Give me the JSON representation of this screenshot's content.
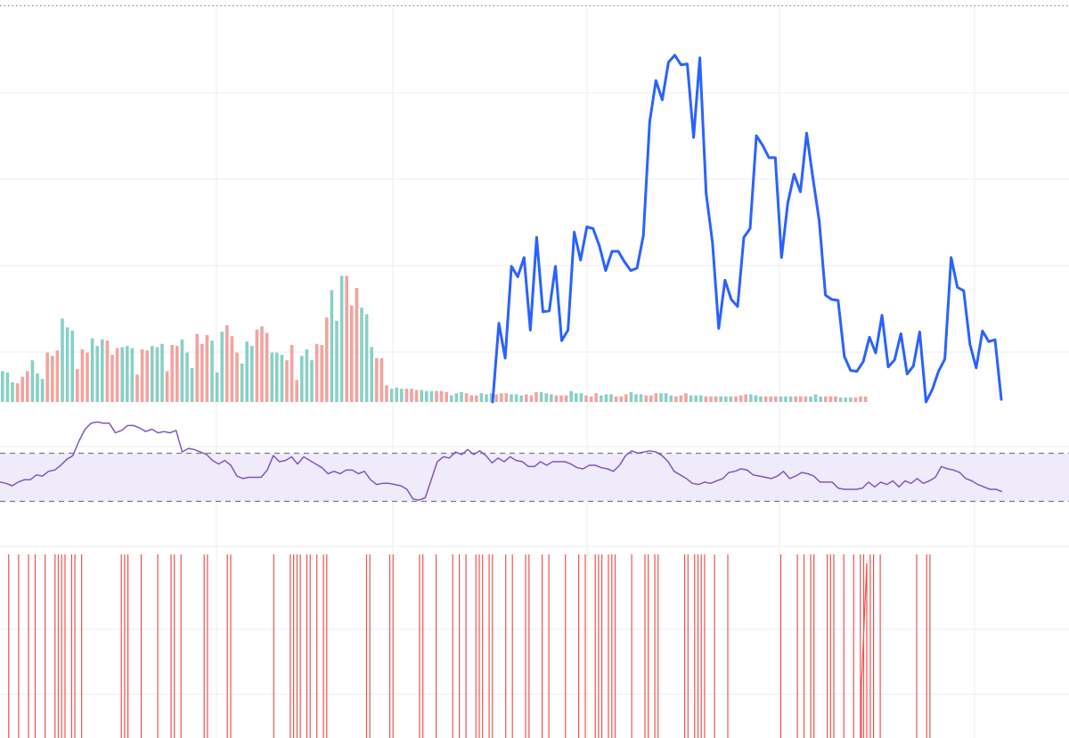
{
  "chart_data": [
    {
      "pane": "price",
      "type": "line",
      "title": "",
      "xlabel": "",
      "ylabel": "",
      "ylim": [
        0,
        400
      ],
      "grid": true,
      "x_start": 79,
      "series": [
        {
          "name": "",
          "color": "#2962ff",
          "values": [
            0,
            90,
            50,
            155,
            143,
            165,
            82,
            188,
            103,
            104,
            155,
            70,
            82,
            194,
            162,
            200,
            198,
            178,
            150,
            172,
            172,
            160,
            150,
            153,
            190,
            320,
            367,
            345,
            388,
            396,
            385,
            386,
            302,
            393,
            238,
            182,
            84,
            139,
            117,
            109,
            188,
            198,
            304,
            293,
            279,
            279,
            165,
            227,
            260,
            240,
            307,
            256,
            207,
            122,
            117,
            116,
            52,
            36,
            35,
            46,
            74,
            56,
            99,
            40,
            48,
            78,
            32,
            41,
            80,
            0,
            14,
            35,
            49,
            165,
            131,
            127,
            66,
            39,
            81,
            69,
            71,
            3
          ]
        },
        {
          "name": "",
          "type": "bar",
          "up_color": "#89d0c6",
          "down_color": "#f3a39f",
          "values": [
            28,
            27,
            18,
            17,
            23,
            28,
            38,
            26,
            21,
            45,
            42,
            47,
            76,
            68,
            65,
            30,
            48,
            45,
            58,
            51,
            57,
            56,
            43,
            49,
            50,
            51,
            49,
            25,
            48,
            47,
            51,
            50,
            53,
            28,
            52,
            51,
            57,
            45,
            31,
            62,
            53,
            61,
            56,
            27,
            64,
            70,
            60,
            45,
            35,
            55,
            51,
            66,
            69,
            63,
            45,
            45,
            43,
            38,
            52,
            20,
            42,
            48,
            38,
            53,
            52,
            77,
            102,
            74,
            115,
            115,
            88,
            104,
            86,
            80,
            50,
            40,
            40,
            15,
            12,
            13,
            12,
            12,
            12,
            11,
            11,
            10,
            10,
            10,
            10,
            9,
            6,
            8,
            9,
            8,
            6,
            6,
            8,
            7,
            8,
            7,
            8,
            8,
            7,
            7,
            6,
            7,
            6,
            9,
            9,
            8,
            7,
            6,
            6,
            6,
            10,
            8,
            8,
            6,
            5,
            8,
            6,
            7,
            7,
            5,
            5,
            7,
            9,
            7,
            7,
            6,
            6,
            8,
            8,
            8,
            6,
            5,
            6,
            8,
            6,
            6,
            6,
            5,
            5,
            5,
            5,
            5,
            5,
            5,
            6,
            7,
            7,
            6,
            5,
            5,
            5,
            5,
            5,
            5,
            5,
            5,
            5,
            5,
            5,
            7,
            5,
            5,
            5,
            5,
            4,
            4,
            4,
            4,
            5,
            5
          ]
        }
      ]
    },
    {
      "pane": "oscillator",
      "type": "line",
      "title": "",
      "xlabel": "",
      "ylabel": "",
      "ylim": [
        0,
        100
      ],
      "band": [
        30,
        70
      ],
      "band_color": "#efebfa",
      "grid": false,
      "series": [
        {
          "name": "",
          "color": "#7e57c2",
          "values": [
            46,
            45,
            43,
            46,
            48,
            48,
            52,
            51,
            55,
            56,
            60,
            65,
            68,
            80,
            90,
            95,
            96,
            95,
            95,
            87,
            89,
            93,
            93,
            91,
            88,
            90,
            87,
            88,
            87,
            89,
            71,
            74,
            73,
            71,
            69,
            64,
            61,
            64,
            60,
            51,
            49,
            50,
            50,
            50,
            56,
            68,
            63,
            64,
            67,
            61,
            67,
            64,
            61,
            58,
            53,
            55,
            53,
            56,
            56,
            53,
            55,
            48,
            44,
            45,
            45,
            44,
            43,
            40,
            32,
            31,
            33,
            48,
            63,
            67,
            66,
            71,
            69,
            73,
            69,
            72,
            68,
            62,
            66,
            63,
            67,
            64,
            63,
            59,
            59,
            63,
            60,
            63,
            63,
            63,
            61,
            58,
            57,
            60,
            60,
            58,
            57,
            55,
            60,
            68,
            72,
            70,
            71,
            72,
            71,
            68,
            63,
            55,
            52,
            49,
            45,
            44,
            46,
            45,
            47,
            49,
            54,
            55,
            57,
            56,
            52,
            51,
            50,
            49,
            51,
            55,
            49,
            51,
            54,
            53,
            51,
            46,
            46,
            46,
            41,
            40,
            40,
            40,
            41,
            46,
            42,
            46,
            44,
            47,
            42,
            47,
            45,
            49,
            45,
            47,
            50,
            59,
            57,
            56,
            54,
            49,
            47,
            44,
            42,
            40,
            40,
            38
          ]
        }
      ]
    },
    {
      "pane": "signals",
      "type": "line",
      "title": "",
      "xlabel": "",
      "ylabel": "",
      "grid": true,
      "series": [
        {
          "name": "",
          "color": "#ef5350",
          "signal_indices": [
            1,
            4,
            7,
            9,
            12,
            15,
            16,
            17,
            18,
            20,
            21,
            23,
            35,
            36,
            37,
            41,
            46,
            50,
            51,
            53,
            60,
            61,
            67,
            68,
            81,
            86,
            87,
            88,
            89,
            91,
            92,
            94,
            96,
            97,
            109,
            110,
            116,
            117,
            125,
            126,
            130,
            135,
            137,
            139,
            142,
            143,
            144,
            146,
            147,
            151,
            153,
            157,
            158,
            162,
            164,
            169,
            173,
            175,
            178,
            179,
            180,
            182,
            183,
            184,
            189,
            193,
            194,
            196,
            197,
            205,
            206,
            208,
            209,
            210,
            211,
            214,
            218,
            234,
            239,
            241,
            243,
            244,
            248,
            249,
            250,
            253,
            256,
            258,
            259,
            261,
            262,
            264,
            275,
            278,
            279
          ]
        }
      ]
    }
  ]
}
